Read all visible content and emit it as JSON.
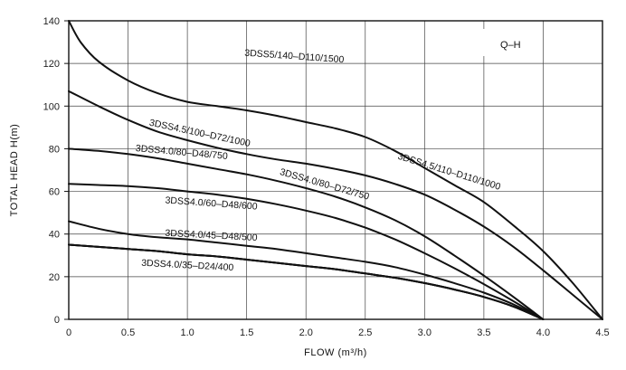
{
  "chart_data": {
    "type": "line",
    "xlabel": "FLOW (m³/h)",
    "ylabel": "TOTAL HEAD  H(m)",
    "legend_text": "Q–H",
    "legend_position": "top-right",
    "xlim": [
      0,
      4.5
    ],
    "ylim": [
      0,
      140
    ],
    "grid": true,
    "x_ticks": [
      "0",
      "0.5",
      "1.0",
      "1.5",
      "2.0",
      "2.5",
      "3.0",
      "3.5",
      "4.0",
      "4.5"
    ],
    "y_ticks": [
      "0",
      "20",
      "40",
      "60",
      "80",
      "100",
      "120",
      "140"
    ],
    "series": [
      {
        "name": "3DSS5/140–D110/1500",
        "x": [
          0,
          0.1,
          0.25,
          0.5,
          0.75,
          1.0,
          1.25,
          1.5,
          1.75,
          2.0,
          2.25,
          2.5,
          2.75,
          3.0,
          3.25,
          3.5,
          3.75,
          4.0,
          4.25,
          4.5
        ],
        "y": [
          140,
          130,
          121,
          112,
          106,
          102,
          100,
          98,
          95.5,
          92.5,
          89.5,
          85.5,
          79,
          71,
          63,
          55,
          44,
          32,
          17,
          0
        ]
      },
      {
        "name": "3DSS4.5/110–D110/1000",
        "x": [
          0,
          0.25,
          0.5,
          0.75,
          1.0,
          1.25,
          1.5,
          1.75,
          2.0,
          2.25,
          2.5,
          2.75,
          3.0,
          3.25,
          3.5,
          3.75,
          4.0,
          4.25,
          4.5
        ],
        "y": [
          107,
          100,
          93.5,
          88,
          84,
          80.5,
          77.5,
          75,
          73,
          70.5,
          67.5,
          63.5,
          58.5,
          51.5,
          43.5,
          34,
          23,
          11.5,
          0
        ]
      },
      {
        "name": "3DSS4.5/100–D72/1000",
        "x": [
          0,
          0.25,
          0.5,
          0.75,
          1.0,
          1.25,
          1.5,
          1.75,
          2.0,
          2.25,
          2.5,
          2.75,
          3.0,
          3.25,
          3.5,
          3.75,
          4.0
        ],
        "y": [
          80,
          79,
          77.5,
          75.5,
          73,
          70.5,
          68,
          65,
          61.5,
          57.5,
          52.5,
          46.5,
          39,
          30,
          20.5,
          10.5,
          0
        ]
      },
      {
        "name": "3DSS4.0/80–D72/750",
        "x": [
          0,
          0.25,
          0.5,
          0.75,
          1.0,
          1.25,
          1.5,
          1.75,
          2.0,
          2.25,
          2.5,
          2.75,
          3.0,
          3.25,
          3.5,
          3.75,
          4.0
        ],
        "y": [
          63.5,
          63,
          62.5,
          61.5,
          60,
          58.5,
          56.5,
          54,
          51,
          47.5,
          43,
          37.5,
          31,
          24,
          16.5,
          8.5,
          0
        ]
      },
      {
        "name": "3DSS4.0/80–D48/750",
        "x": [
          0,
          0.25,
          0.5,
          0.75,
          1.0,
          1.25,
          1.5,
          1.75,
          2.0,
          2.25,
          2.5,
          2.75,
          3.0,
          3.25,
          3.5,
          3.75,
          4.0
        ],
        "y": [
          46,
          42.5,
          40,
          38.5,
          37.5,
          36,
          34.5,
          33,
          31,
          29,
          27,
          24.5,
          21,
          17,
          12.5,
          7,
          0
        ]
      },
      {
        "name": "3DSS4.0/60–D48/600",
        "x": [
          0,
          0.25,
          0.5,
          0.75,
          1.0,
          1.25,
          1.5,
          1.75,
          2.0,
          2.25,
          2.5,
          2.75,
          3.0,
          3.25,
          3.5,
          3.75,
          4.0
        ],
        "y": [
          35,
          34,
          33,
          32,
          30.5,
          29.5,
          28,
          26.5,
          25,
          23.5,
          21.5,
          19.5,
          17,
          14,
          10.5,
          6,
          0
        ]
      },
      {
        "name": "3DSS4.0/45–D48/500",
        "x": [
          0,
          0.25,
          0.5,
          0.75,
          1.0,
          1.25,
          1.5,
          1.75,
          2.0,
          2.25,
          2.5,
          2.75,
          3.0,
          3.25,
          3.5,
          3.75,
          4.0
        ],
        "y": [
          35,
          34,
          33,
          32,
          30.5,
          29.5,
          28,
          26.5,
          25,
          23.5,
          21.5,
          19.5,
          17,
          14,
          10.5,
          6,
          0
        ]
      },
      {
        "name": "3DSS4.0/35–D24/400",
        "x": [
          0,
          0.25,
          0.5,
          0.75,
          1.0,
          1.25,
          1.5,
          1.75,
          2.0,
          2.25,
          2.5,
          2.75,
          3.0,
          3.25,
          3.5,
          3.75,
          4.0
        ],
        "y": [
          35,
          34,
          33,
          32,
          30.5,
          29.5,
          28,
          26.5,
          25,
          23.5,
          21.5,
          19.5,
          17,
          14,
          10.5,
          6,
          0
        ]
      }
    ]
  },
  "curve_labels": [
    {
      "text": "3DSS5/140–D110/1500",
      "anchor_x": 1.9,
      "anchor_y": 122,
      "rotate": 4
    },
    {
      "text": "3DSS4.5/110–D110/1000",
      "anchor_x": 3.2,
      "anchor_y": 68,
      "rotate": 17
    },
    {
      "text": "3DSS4.5/100–D72/1000",
      "anchor_x": 1.1,
      "anchor_y": 86,
      "rotate": 12
    },
    {
      "text": "3DSS4.0/80–D48/750",
      "anchor_x": 0.95,
      "anchor_y": 77,
      "rotate": 5
    },
    {
      "text": "3DSS4.0/80–D72/750",
      "anchor_x": 2.15,
      "anchor_y": 62,
      "rotate": 16
    },
    {
      "text": "3DSS4.0/60–D48/600",
      "anchor_x": 1.2,
      "anchor_y": 53,
      "rotate": 4
    },
    {
      "text": "3DSS4.0/45–D48/500",
      "anchor_x": 1.2,
      "anchor_y": 38,
      "rotate": 3
    },
    {
      "text": "3DSS4.0/35–D24/400",
      "anchor_x": 1.0,
      "anchor_y": 24,
      "rotate": 3
    }
  ]
}
